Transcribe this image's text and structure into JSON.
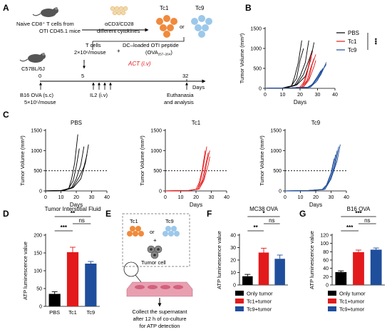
{
  "panel_letters": {
    "A": "A",
    "B": "B",
    "C": "C",
    "D": "D",
    "E": "E",
    "F": "F",
    "G": "G"
  },
  "panel_a": {
    "naive_line1": "Naive  CD8⁺ T cells from",
    "naive_line2": "OTI CD45.1 mice",
    "cytokine_line1": "αCD3/CD28",
    "cytokine_line2": "different cytokines",
    "tc1_label": "Tc1",
    "or_label": "or",
    "tc9_label": "Tc9",
    "tcells_line1": "T cells",
    "tcells_line2": "2×10⁶/mouse",
    "plus": "+",
    "dc_line1": "DC–loaded OTI peptide",
    "dc_line2": "(OVA",
    "dc_sub": "257–264",
    "dc_close": ")",
    "act_label": "ACT (i.v)",
    "mouse_label": "C57BL/6J",
    "day0": "0",
    "day5": "5",
    "day32": "32",
    "days_label": "Days",
    "b16_line1": "B16 OVA  (s.c)",
    "b16_line2": "5×10⁵/mouse",
    "il2_label": "IL2 (i.v)",
    "euth_line1": "Euthanasia",
    "euth_line2": "and analysis"
  },
  "panel_e": {
    "tc1": "Tc1",
    "tc9": "Tc9",
    "or": "or",
    "plus": "+",
    "tumor_cell": "Tumor cell",
    "collect_line1": "Collect the supernatant",
    "collect_line2": "after 12 h of co-culture",
    "collect_line3": "for ATP detection"
  },
  "colors": {
    "pbs": "#000000",
    "tc1": "#e31a1c",
    "tc9": "#1f4e9c",
    "plate": "#e8a0b0"
  },
  "chart_data": [
    {
      "id": "B",
      "type": "line",
      "ylabel": "Tumor Volume (mm³)",
      "xlabel": "Days",
      "xlim": [
        0,
        40
      ],
      "ylim": [
        0,
        1500
      ],
      "xticks": [
        0,
        10,
        20,
        30,
        40
      ],
      "yticks": [
        0,
        500,
        1000,
        1500
      ],
      "legend": [
        "PBS",
        "Tc1",
        "Tc9"
      ],
      "significance": "***",
      "series": [
        {
          "name": "PBS",
          "values": [
            [
              0,
              0
            ],
            [
              10,
              10
            ],
            [
              15,
              50
            ],
            [
              17,
              300
            ],
            [
              19,
              650
            ],
            [
              21,
              1200
            ]
          ]
        },
        {
          "name": "PBS",
          "values": [
            [
              0,
              0
            ],
            [
              10,
              10
            ],
            [
              15,
              60
            ],
            [
              18,
              250
            ],
            [
              20,
              700
            ],
            [
              22,
              1000
            ]
          ]
        },
        {
          "name": "PBS",
          "values": [
            [
              0,
              0
            ],
            [
              12,
              10
            ],
            [
              17,
              80
            ],
            [
              20,
              300
            ],
            [
              23,
              650
            ],
            [
              25,
              1200
            ]
          ]
        },
        {
          "name": "PBS",
          "values": [
            [
              0,
              0
            ],
            [
              12,
              10
            ],
            [
              18,
              100
            ],
            [
              22,
              350
            ],
            [
              25,
              700
            ],
            [
              27,
              950
            ]
          ]
        },
        {
          "name": "PBS",
          "values": [
            [
              0,
              0
            ],
            [
              12,
              10
            ],
            [
              18,
              80
            ],
            [
              23,
              300
            ],
            [
              26,
              700
            ],
            [
              28,
              1150
            ]
          ]
        },
        {
          "name": "Tc1",
          "values": [
            [
              0,
              0
            ],
            [
              15,
              10
            ],
            [
              20,
              30
            ],
            [
              22,
              150
            ],
            [
              24,
              400
            ],
            [
              26,
              800
            ]
          ]
        },
        {
          "name": "Tc1",
          "values": [
            [
              0,
              0
            ],
            [
              15,
              10
            ],
            [
              21,
              30
            ],
            [
              23,
              200
            ],
            [
              25,
              550
            ],
            [
              27,
              900
            ]
          ]
        },
        {
          "name": "Tc1",
          "values": [
            [
              0,
              0
            ],
            [
              15,
              10
            ],
            [
              21,
              30
            ],
            [
              24,
              200
            ],
            [
              26,
              500
            ],
            [
              28,
              750
            ]
          ]
        },
        {
          "name": "Tc1",
          "values": [
            [
              0,
              0
            ],
            [
              15,
              10
            ],
            [
              22,
              40
            ],
            [
              25,
              250
            ],
            [
              27,
              600
            ],
            [
              29,
              850
            ]
          ]
        },
        {
          "name": "Tc1",
          "values": [
            [
              0,
              0
            ],
            [
              15,
              10
            ],
            [
              22,
              40
            ],
            [
              25,
              200
            ],
            [
              28,
              550
            ],
            [
              29,
              700
            ]
          ]
        },
        {
          "name": "Tc9",
          "values": [
            [
              0,
              0
            ],
            [
              15,
              10
            ],
            [
              24,
              20
            ],
            [
              27,
              100
            ],
            [
              30,
              300
            ],
            [
              32,
              450
            ]
          ]
        },
        {
          "name": "Tc9",
          "values": [
            [
              0,
              0
            ],
            [
              15,
              10
            ],
            [
              25,
              20
            ],
            [
              28,
              150
            ],
            [
              31,
              350
            ],
            [
              33,
              500
            ]
          ]
        },
        {
          "name": "Tc9",
          "values": [
            [
              0,
              0
            ],
            [
              15,
              10
            ],
            [
              25,
              30
            ],
            [
              29,
              150
            ],
            [
              32,
              350
            ],
            [
              34,
              550
            ]
          ]
        },
        {
          "name": "Tc9",
          "values": [
            [
              0,
              0
            ],
            [
              15,
              10
            ],
            [
              26,
              30
            ],
            [
              30,
              200
            ],
            [
              32,
              400
            ],
            [
              35,
              600
            ]
          ]
        },
        {
          "name": "Tc9",
          "values": [
            [
              0,
              0
            ],
            [
              15,
              10
            ],
            [
              26,
              30
            ],
            [
              30,
              250
            ],
            [
              33,
              450
            ],
            [
              35,
              650
            ]
          ]
        }
      ]
    },
    {
      "id": "C1",
      "type": "line",
      "title": "PBS",
      "ylabel": "Tumor Volume (mm³)",
      "xlabel": "Days",
      "xlim": [
        0,
        40
      ],
      "ylim": [
        0,
        1500
      ],
      "xticks": [
        0,
        10,
        20,
        30,
        40
      ],
      "yticks": [
        0,
        500,
        1000,
        1500
      ],
      "threshold": 500,
      "series": [
        {
          "name": "PBS",
          "values": [
            [
              0,
              0
            ],
            [
              10,
              10
            ],
            [
              15,
              50
            ],
            [
              17,
              300
            ],
            [
              19,
              700
            ],
            [
              21,
              1400
            ]
          ]
        },
        {
          "name": "PBS",
          "values": [
            [
              0,
              0
            ],
            [
              10,
              10
            ],
            [
              15,
              60
            ],
            [
              18,
              250
            ],
            [
              20,
              600
            ],
            [
              22,
              1050
            ]
          ]
        },
        {
          "name": "PBS",
          "values": [
            [
              0,
              0
            ],
            [
              12,
              10
            ],
            [
              17,
              80
            ],
            [
              20,
              300
            ],
            [
              23,
              650
            ],
            [
              25,
              1100
            ]
          ]
        },
        {
          "name": "PBS",
          "values": [
            [
              0,
              0
            ],
            [
              12,
              10
            ],
            [
              18,
              100
            ],
            [
              22,
              350
            ],
            [
              25,
              600
            ],
            [
              27,
              900
            ]
          ]
        },
        {
          "name": "PBS",
          "values": [
            [
              0,
              0
            ],
            [
              12,
              10
            ],
            [
              18,
              80
            ],
            [
              23,
              300
            ],
            [
              26,
              700
            ],
            [
              28,
              1150
            ]
          ]
        }
      ]
    },
    {
      "id": "C2",
      "type": "line",
      "title": "Tc1",
      "ylabel": "Tumor Volume (mm³)",
      "xlabel": "Days",
      "xlim": [
        0,
        40
      ],
      "ylim": [
        0,
        1500
      ],
      "xticks": [
        0,
        10,
        20,
        30,
        40
      ],
      "yticks": [
        0,
        500,
        1000,
        1500
      ],
      "threshold": 500,
      "series": [
        {
          "name": "Tc1",
          "values": [
            [
              0,
              0
            ],
            [
              15,
              10
            ],
            [
              20,
              40
            ],
            [
              22,
              200
            ],
            [
              24,
              500
            ],
            [
              26,
              1000
            ]
          ]
        },
        {
          "name": "Tc1",
          "values": [
            [
              0,
              0
            ],
            [
              15,
              10
            ],
            [
              21,
              40
            ],
            [
              23,
              250
            ],
            [
              25,
              650
            ],
            [
              27,
              1100
            ]
          ]
        },
        {
          "name": "Tc1",
          "values": [
            [
              0,
              0
            ],
            [
              15,
              10
            ],
            [
              21,
              40
            ],
            [
              24,
              250
            ],
            [
              26,
              600
            ],
            [
              28,
              950
            ]
          ]
        },
        {
          "name": "Tc1",
          "values": [
            [
              0,
              0
            ],
            [
              15,
              10
            ],
            [
              22,
              50
            ],
            [
              25,
              300
            ],
            [
              27,
              700
            ],
            [
              29,
              1000
            ]
          ]
        },
        {
          "name": "Tc1",
          "values": [
            [
              0,
              0
            ],
            [
              15,
              10
            ],
            [
              22,
              50
            ],
            [
              25,
              250
            ],
            [
              28,
              650
            ],
            [
              29,
              850
            ]
          ]
        }
      ]
    },
    {
      "id": "C3",
      "type": "line",
      "title": "Tc9",
      "ylabel": "Tumor Volume (mm³)",
      "xlabel": "Days",
      "xlim": [
        0,
        40
      ],
      "ylim": [
        0,
        1500
      ],
      "xticks": [
        0,
        10,
        20,
        30,
        40
      ],
      "yticks": [
        0,
        500,
        1000,
        1500
      ],
      "threshold": 500,
      "series": [
        {
          "name": "Tc9",
          "values": [
            [
              0,
              0
            ],
            [
              15,
              10
            ],
            [
              24,
              30
            ],
            [
              27,
              150
            ],
            [
              30,
              450
            ],
            [
              32,
              800
            ]
          ]
        },
        {
          "name": "Tc9",
          "values": [
            [
              0,
              0
            ],
            [
              15,
              10
            ],
            [
              25,
              30
            ],
            [
              28,
              200
            ],
            [
              31,
              550
            ],
            [
              33,
              900
            ]
          ]
        },
        {
          "name": "Tc9",
          "values": [
            [
              0,
              0
            ],
            [
              15,
              10
            ],
            [
              25,
              40
            ],
            [
              29,
              250
            ],
            [
              32,
              600
            ],
            [
              34,
              1000
            ]
          ]
        },
        {
          "name": "Tc9",
          "values": [
            [
              0,
              0
            ],
            [
              15,
              10
            ],
            [
              26,
              40
            ],
            [
              30,
              300
            ],
            [
              33,
              700
            ],
            [
              35,
              1100
            ]
          ]
        },
        {
          "name": "Tc9",
          "values": [
            [
              0,
              0
            ],
            [
              15,
              10
            ],
            [
              26,
              40
            ],
            [
              30,
              300
            ],
            [
              34,
              750
            ],
            [
              36,
              1150
            ]
          ]
        }
      ]
    },
    {
      "id": "D",
      "type": "bar",
      "title": "Tumor Interstitial Fluid",
      "ylabel": "ATP luminescence value",
      "categories": [
        "PBS",
        "Tc1",
        "Tc9"
      ],
      "values": [
        35,
        152,
        120
      ],
      "errors": [
        6,
        14,
        6
      ],
      "colors": [
        "#000000",
        "#e31a1c",
        "#1f4e9c"
      ],
      "ylim": [
        0,
        200
      ],
      "yticks": [
        0,
        50,
        100,
        150,
        200
      ],
      "significance": [
        {
          "from": 0,
          "to": 1,
          "label": "***"
        },
        {
          "from": 1,
          "to": 2,
          "label": "ns"
        },
        {
          "from": 0,
          "to": 2,
          "label": "**"
        }
      ]
    },
    {
      "id": "F",
      "type": "bar",
      "title": "MC38 OVA",
      "ylabel": "ATP luminescence value",
      "categories": [
        "Only tumor",
        "Tc1+tumor",
        "Tc9+tumor"
      ],
      "values": [
        7,
        26,
        21
      ],
      "errors": [
        1.5,
        3.5,
        3
      ],
      "colors": [
        "#000000",
        "#e31a1c",
        "#1f4e9c"
      ],
      "ylim": [
        0,
        40
      ],
      "yticks": [
        0,
        10,
        20,
        30,
        40
      ],
      "legend": [
        "Only tumor",
        "Tc1+tumor",
        "Tc9+tumor"
      ],
      "significance": [
        {
          "from": 0,
          "to": 1,
          "label": "**"
        },
        {
          "from": 1,
          "to": 2,
          "label": "ns"
        },
        {
          "from": 0,
          "to": 2,
          "label": "*"
        }
      ]
    },
    {
      "id": "G",
      "type": "bar",
      "title": "B16 OVA",
      "ylabel": "ATP luminescence value",
      "categories": [
        "Only tumor",
        "Tc1+tumor",
        "Tc9+tumor"
      ],
      "values": [
        31,
        79,
        85
      ],
      "errors": [
        3,
        5,
        4
      ],
      "colors": [
        "#000000",
        "#e31a1c",
        "#1f4e9c"
      ],
      "ylim": [
        0,
        120
      ],
      "yticks": [
        0,
        20,
        40,
        60,
        80,
        100,
        120
      ],
      "legend": [
        "Only tumor",
        "Tc1+tumor",
        "Tc9+tumor"
      ],
      "significance": [
        {
          "from": 0,
          "to": 1,
          "label": "***"
        },
        {
          "from": 1,
          "to": 2,
          "label": "ns"
        },
        {
          "from": 0,
          "to": 2,
          "label": "***"
        }
      ]
    }
  ]
}
